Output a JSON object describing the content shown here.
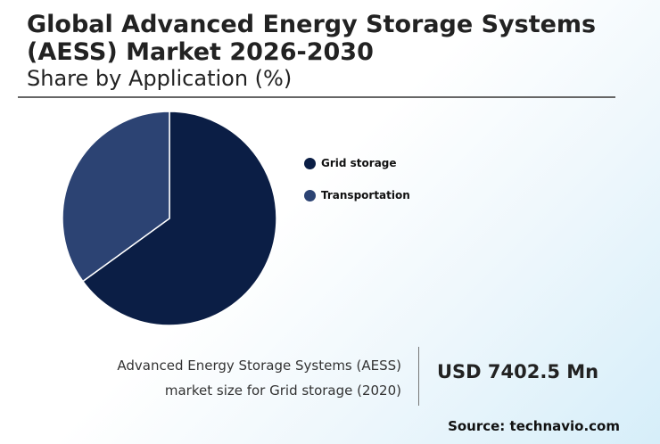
{
  "header": {
    "title": "Global Advanced Energy Storage Systems (AESS) Market 2026-2030",
    "subtitle": "Share by Application (%)"
  },
  "chart_data": {
    "type": "pie",
    "labels": [
      "Grid storage",
      "Transportation"
    ],
    "values": [
      65,
      35
    ],
    "colors": [
      "#0b1e45",
      "#2c4373"
    ],
    "legend_position": "right"
  },
  "stat": {
    "line1": "Advanced Energy Storage Systems (AESS)",
    "line2": "market size for Grid storage (2020)",
    "value": "USD 7402.5 Mn"
  },
  "source": "Source: technavio.com"
}
